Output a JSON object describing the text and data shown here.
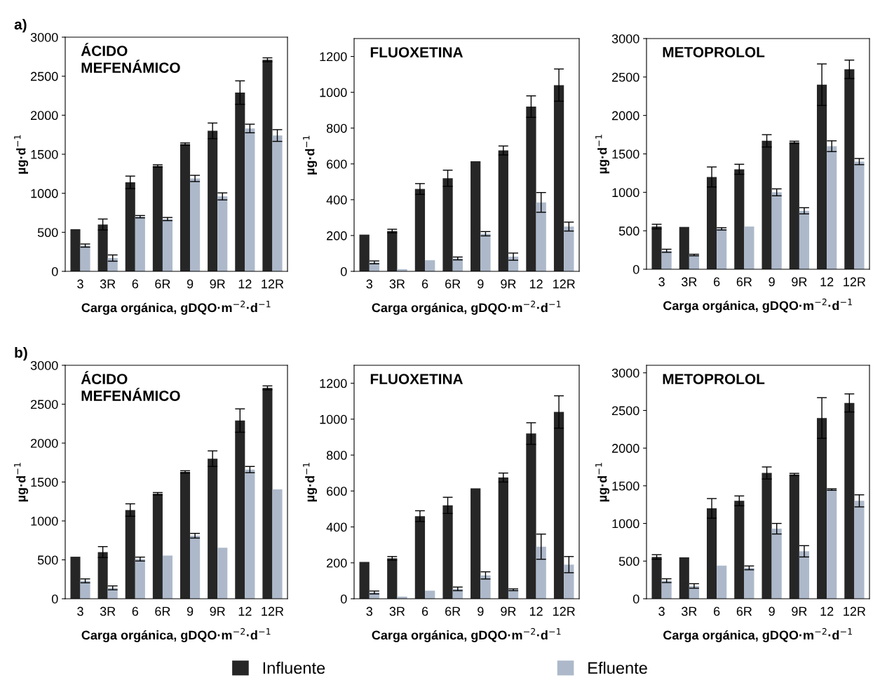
{
  "chart_data": [
    {
      "type": "bar",
      "title": "ÁCIDO\nMEFENÁMICO",
      "xlabel": "Carga orgánica, gDQO·m$^{−2}$·d$^{−1}$",
      "ylabel": "µg·d$^{−1}$",
      "annotations": [
        "a)"
      ],
      "categories": [
        "3",
        "3R",
        "6",
        "6R",
        "9",
        "9R",
        "12",
        "12R"
      ],
      "ylim": [
        0,
        3000
      ],
      "yticks": [
        0,
        500,
        1000,
        1500,
        2000,
        2500,
        3000
      ],
      "series": [
        {
          "color": "#262626",
          "values": [
            540,
            600,
            1140,
            1350,
            1630,
            1800,
            2290,
            2710
          ],
          "errors": [
            null,
            70,
            80,
            15,
            15,
            100,
            150,
            25
          ]
        },
        {
          "color": "#adb9ca",
          "values": [
            330,
            170,
            700,
            670,
            1190,
            960,
            1830,
            1740
          ],
          "errors": [
            20,
            40,
            15,
            20,
            40,
            45,
            55,
            75
          ]
        }
      ]
    },
    {
      "type": "bar",
      "title": "FLUOXETINA",
      "xlabel": "Carga orgánica, gDQO·m$^{−2}$·d$^{−1}$",
      "ylabel": "µg·d$^{−1}$",
      "categories": [
        "3",
        "3R",
        "6",
        "6R",
        "9",
        "9R",
        "12",
        "12R"
      ],
      "ylim": [
        0,
        1300
      ],
      "yticks": [
        0,
        200,
        400,
        600,
        800,
        1000,
        1200
      ],
      "series": [
        {
          "color": "#262626",
          "values": [
            205,
            225,
            460,
            520,
            615,
            675,
            920,
            1040
          ],
          "errors": [
            null,
            10,
            30,
            45,
            null,
            25,
            60,
            90
          ]
        },
        {
          "color": "#adb9ca",
          "values": [
            50,
            12,
            62,
            72,
            210,
            82,
            385,
            250
          ],
          "errors": [
            8,
            null,
            null,
            8,
            12,
            20,
            55,
            25
          ]
        }
      ]
    },
    {
      "type": "bar",
      "title": "METOPROLOL",
      "xlabel": "Carga orgánica, gDQO·m$^{−2}$·d$^{−1}$",
      "ylabel": "µg·d$^{−1}$",
      "categories": [
        "3",
        "3R",
        "6",
        "6R",
        "9",
        "9R",
        "12",
        "12R"
      ],
      "ylim": [
        0,
        3000
      ],
      "yticks": [
        0,
        500,
        1000,
        1500,
        2000,
        2500,
        3000
      ],
      "series": [
        {
          "color": "#262626",
          "values": [
            555,
            550,
            1200,
            1300,
            1670,
            1650,
            2400,
            2600
          ],
          "errors": [
            30,
            null,
            130,
            65,
            80,
            15,
            270,
            120
          ]
        },
        {
          "color": "#adb9ca",
          "values": [
            240,
            185,
            525,
            555,
            1000,
            760,
            1600,
            1400
          ],
          "errors": [
            20,
            10,
            15,
            null,
            45,
            40,
            70,
            40
          ]
        }
      ]
    },
    {
      "type": "bar",
      "title": "ÁCIDO\nMEFENÁMICO",
      "xlabel": "Carga orgánica, gDQO·m$^{−2}$·d$^{−1}$",
      "ylabel": "µg·d$^{−1}$",
      "annotations": [
        "b)"
      ],
      "categories": [
        "3",
        "3R",
        "6",
        "6R",
        "9",
        "9R",
        "12",
        "12R"
      ],
      "ylim": [
        0,
        3000
      ],
      "yticks": [
        0,
        500,
        1000,
        1500,
        2000,
        2500,
        3000
      ],
      "series": [
        {
          "color": "#262626",
          "values": [
            540,
            600,
            1140,
            1350,
            1630,
            1800,
            2290,
            2710
          ],
          "errors": [
            null,
            70,
            80,
            15,
            15,
            100,
            150,
            25
          ]
        },
        {
          "color": "#adb9ca",
          "values": [
            230,
            140,
            510,
            555,
            810,
            655,
            1660,
            1405
          ],
          "errors": [
            25,
            25,
            25,
            null,
            30,
            null,
            40,
            null
          ]
        }
      ]
    },
    {
      "type": "bar",
      "title": "FLUOXETINA",
      "xlabel": "Carga orgánica, gDQO·m$^{−2}$·d$^{−1}$",
      "ylabel": "µg·d$^{−1}$",
      "categories": [
        "3",
        "3R",
        "6",
        "6R",
        "9",
        "9R",
        "12",
        "12R"
      ],
      "ylim": [
        0,
        1300
      ],
      "yticks": [
        0,
        200,
        400,
        600,
        800,
        1000,
        1200
      ],
      "series": [
        {
          "color": "#262626",
          "values": [
            205,
            225,
            460,
            520,
            615,
            675,
            920,
            1040
          ],
          "errors": [
            null,
            10,
            30,
            45,
            null,
            25,
            60,
            90
          ]
        },
        {
          "color": "#adb9ca",
          "values": [
            35,
            12,
            45,
            55,
            130,
            50,
            290,
            190
          ],
          "errors": [
            8,
            null,
            null,
            10,
            20,
            5,
            70,
            45
          ]
        }
      ]
    },
    {
      "type": "bar",
      "title": "METOPROLOL",
      "xlabel": "Carga orgánica, gDQO·m$^{−2}$·d$^{−1}$",
      "ylabel": "µg·d$^{−1}$",
      "categories": [
        "3",
        "3R",
        "6",
        "6R",
        "9",
        "9R",
        "12",
        "12R"
      ],
      "ylim": [
        0,
        3100
      ],
      "yticks": [
        0,
        500,
        1000,
        1500,
        2000,
        2500,
        3000
      ],
      "legend": "bottom",
      "series": [
        {
          "name": "Influente",
          "color": "#262626",
          "values": [
            555,
            550,
            1200,
            1300,
            1670,
            1650,
            2400,
            2600
          ],
          "errors": [
            30,
            null,
            130,
            65,
            80,
            15,
            270,
            120
          ]
        },
        {
          "name": "Efluente",
          "color": "#adb9ca",
          "values": [
            240,
            170,
            440,
            410,
            930,
            630,
            1450,
            1300
          ],
          "errors": [
            25,
            30,
            null,
            25,
            70,
            75,
            10,
            80
          ]
        }
      ]
    }
  ]
}
